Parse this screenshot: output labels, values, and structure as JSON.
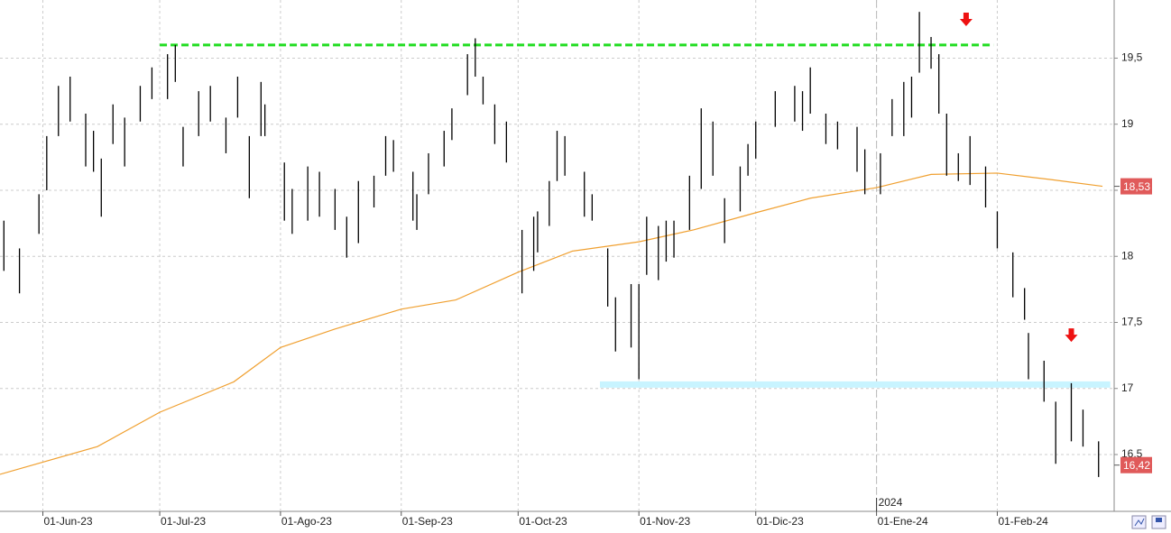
{
  "chart_data": {
    "type": "hilo",
    "color": "#000000",
    "xlim": [
      "2023-05-21",
      "2024-03-02"
    ],
    "ylim": [
      16.07,
      19.94
    ],
    "xticks": [
      {
        "value": "2023-06-01",
        "label": "01-Jun-23"
      },
      {
        "value": "2023-07-01",
        "label": "01-Jul-23"
      },
      {
        "value": "2023-08-01",
        "label": "01-Ago-23"
      },
      {
        "value": "2023-09-01",
        "label": "01-Sep-23"
      },
      {
        "value": "2023-10-01",
        "label": "01-Oct-23"
      },
      {
        "value": "2023-11-01",
        "label": "01-Nov-23"
      },
      {
        "value": "2023-12-01",
        "label": "01-Dic-23"
      },
      {
        "value": "2024-01-01",
        "label": "01-Ene-24"
      },
      {
        "value": "2024-02-01",
        "label": "01-Feb-24"
      }
    ],
    "yticks": [
      {
        "value": 16.5,
        "label": "16,5"
      },
      17,
      {
        "value": 17.5,
        "label": "17,5"
      },
      18,
      {
        "value": 18.5,
        "label": "18,5"
      },
      19,
      {
        "value": 19.5,
        "label": "19,5"
      }
    ],
    "grid": true,
    "year_marker": {
      "date": "2024-01-01",
      "label": "2024"
    },
    "x": [
      "2023-05-22",
      "2023-05-26",
      "2023-05-31",
      "2023-06-02",
      "2023-06-05",
      "2023-06-08",
      "2023-06-12",
      "2023-06-14",
      "2023-06-16",
      "2023-06-19",
      "2023-06-22",
      "2023-06-26",
      "2023-06-29",
      "2023-07-03",
      "2023-07-05",
      "2023-07-07",
      "2023-07-11",
      "2023-07-14",
      "2023-07-18",
      "2023-07-21",
      "2023-07-24",
      "2023-07-27",
      "2023-07-28",
      "2023-08-02",
      "2023-08-04",
      "2023-08-08",
      "2023-08-11",
      "2023-08-15",
      "2023-08-18",
      "2023-08-21",
      "2023-08-25",
      "2023-08-28",
      "2023-08-30",
      "2023-09-04",
      "2023-09-05",
      "2023-09-08",
      "2023-09-12",
      "2023-09-14",
      "2023-09-18",
      "2023-09-20",
      "2023-09-22",
      "2023-09-25",
      "2023-09-28",
      "2023-10-02",
      "2023-10-05",
      "2023-10-06",
      "2023-10-09",
      "2023-10-11",
      "2023-10-13",
      "2023-10-18",
      "2023-10-20",
      "2023-10-24",
      "2023-10-26",
      "2023-10-30",
      "2023-11-01",
      "2023-11-03",
      "2023-11-06",
      "2023-11-08",
      "2023-11-10",
      "2023-11-14",
      "2023-11-17",
      "2023-11-20",
      "2023-11-23",
      "2023-11-27",
      "2023-11-29",
      "2023-12-01",
      "2023-12-06",
      "2023-12-11",
      "2023-12-13",
      "2023-12-15",
      "2023-12-19",
      "2023-12-22",
      "2023-12-27",
      "2023-12-29",
      "2024-01-02",
      "2024-01-05",
      "2024-01-08",
      "2024-01-10",
      "2024-01-12",
      "2024-01-15",
      "2024-01-17",
      "2024-01-19",
      "2024-01-22",
      "2024-01-25",
      "2024-01-29",
      "2024-02-01",
      "2024-02-05",
      "2024-02-08",
      "2024-02-09",
      "2024-02-13",
      "2024-02-16",
      "2024-02-20",
      "2024-02-23",
      "2024-02-27"
    ],
    "high": [
      18.27,
      18.06,
      18.47,
      18.91,
      19.29,
      19.36,
      19.08,
      18.95,
      18.74,
      19.15,
      19.05,
      19.29,
      19.43,
      19.53,
      19.6,
      18.98,
      19.25,
      19.29,
      19.05,
      19.36,
      18.91,
      19.32,
      19.15,
      18.71,
      18.51,
      18.68,
      18.64,
      18.51,
      18.3,
      18.57,
      18.61,
      18.91,
      18.88,
      18.64,
      18.47,
      18.78,
      18.95,
      19.12,
      19.53,
      19.65,
      19.36,
      19.15,
      19.02,
      18.2,
      18.3,
      18.34,
      18.57,
      18.95,
      18.91,
      18.64,
      18.47,
      18.06,
      17.69,
      17.79,
      17.79,
      18.3,
      18.23,
      18.27,
      18.27,
      18.61,
      19.12,
      19.02,
      18.44,
      18.68,
      18.85,
      19.02,
      19.25,
      19.29,
      19.25,
      19.43,
      19.08,
      19.02,
      18.98,
      18.81,
      18.78,
      19.19,
      19.32,
      19.36,
      19.85,
      19.66,
      19.53,
      19.08,
      18.78,
      18.91,
      18.68,
      18.34,
      18.03,
      17.76,
      17.42,
      17.21,
      16.9,
      17.04,
      16.84,
      16.6
    ],
    "low": [
      17.89,
      17.72,
      18.17,
      18.5,
      18.91,
      19.02,
      18.68,
      18.64,
      18.3,
      18.85,
      18.68,
      19.02,
      19.19,
      19.19,
      19.32,
      18.68,
      18.91,
      19.02,
      18.78,
      19.05,
      18.44,
      18.91,
      18.91,
      18.27,
      18.17,
      18.27,
      18.3,
      18.2,
      17.99,
      18.1,
      18.37,
      18.61,
      18.64,
      18.27,
      18.2,
      18.47,
      18.68,
      18.88,
      19.22,
      19.36,
      19.15,
      18.85,
      18.71,
      17.72,
      17.89,
      18.03,
      18.23,
      18.57,
      18.61,
      18.3,
      18.27,
      17.62,
      17.28,
      17.31,
      17.07,
      17.86,
      17.82,
      17.96,
      17.99,
      18.2,
      18.51,
      18.61,
      18.1,
      18.34,
      18.61,
      18.74,
      18.98,
      19.02,
      18.95,
      19.08,
      18.85,
      18.81,
      18.64,
      18.47,
      18.47,
      18.91,
      18.91,
      19.05,
      19.39,
      19.42,
      19.08,
      18.61,
      18.57,
      18.54,
      18.37,
      18.06,
      17.69,
      17.52,
      17.07,
      16.9,
      16.43,
      16.6,
      16.56,
      16.33
    ],
    "moving_average": {
      "color": "#f0a030",
      "x": [
        "2023-05-21",
        "2023-06-15",
        "2023-07-01",
        "2023-07-20",
        "2023-08-01",
        "2023-08-15",
        "2023-09-01",
        "2023-09-15",
        "2023-10-01",
        "2023-10-15",
        "2023-11-01",
        "2023-11-15",
        "2023-12-01",
        "2023-12-15",
        "2024-01-01",
        "2024-01-15",
        "2024-02-01",
        "2024-02-15",
        "2024-02-28"
      ],
      "values": [
        16.35,
        16.56,
        16.82,
        17.05,
        17.31,
        17.45,
        17.6,
        17.67,
        17.88,
        18.04,
        18.11,
        18.2,
        18.33,
        18.44,
        18.52,
        18.62,
        18.63,
        18.58,
        18.53
      ]
    },
    "levels": [
      {
        "value": 19.6,
        "from": "2023-07-01",
        "to": "2024-01-31",
        "color": "#22dd22",
        "style": "dashed"
      },
      {
        "value": 17.03,
        "from": "2023-10-22",
        "to": "2024-03-01",
        "color": "#c8f4ff",
        "style": "solid"
      }
    ],
    "markers": [
      {
        "date": "2024-01-24",
        "value": 19.79,
        "color": "#ee1111"
      },
      {
        "date": "2024-02-20",
        "value": 17.4,
        "color": "#ee1111"
      }
    ],
    "price_labels": [
      {
        "value": 18.53,
        "label": "18,53",
        "color": "#e05a5a"
      },
      {
        "value": 16.42,
        "label": "16,42",
        "color": "#e05a5a"
      }
    ]
  }
}
